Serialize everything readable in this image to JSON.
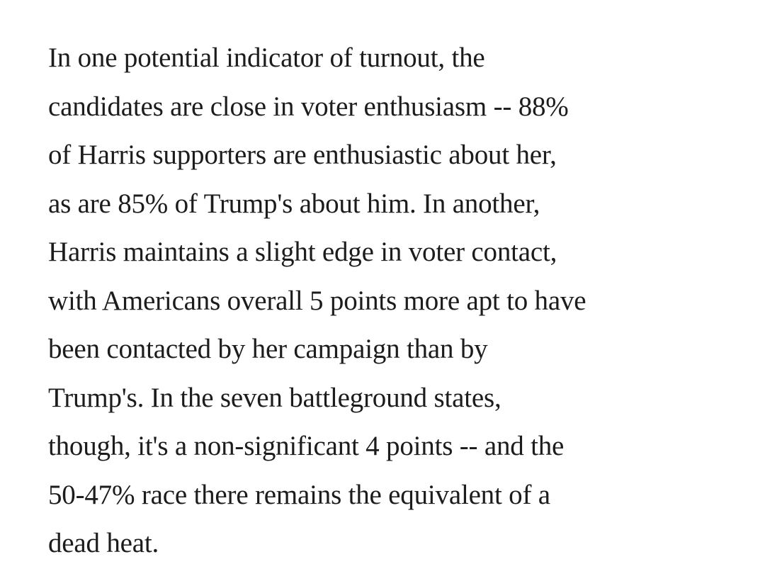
{
  "article": {
    "paragraph_lines": [
      "In one potential indicator of turnout, the",
      "candidates are close in voter enthusiasm -- 88%",
      "of Harris supporters are enthusiastic about her,",
      "as are 85% of Trump's about him. In another,",
      "Harris maintains a slight edge in voter contact,",
      "with Americans overall 5 points more apt to have",
      "been contacted by her campaign than by",
      "Trump's. In the seven battleground states,",
      "though, it's a non-significant 4 points -- and the",
      "50-47% race there remains the equivalent of a",
      "dead heat."
    ]
  }
}
